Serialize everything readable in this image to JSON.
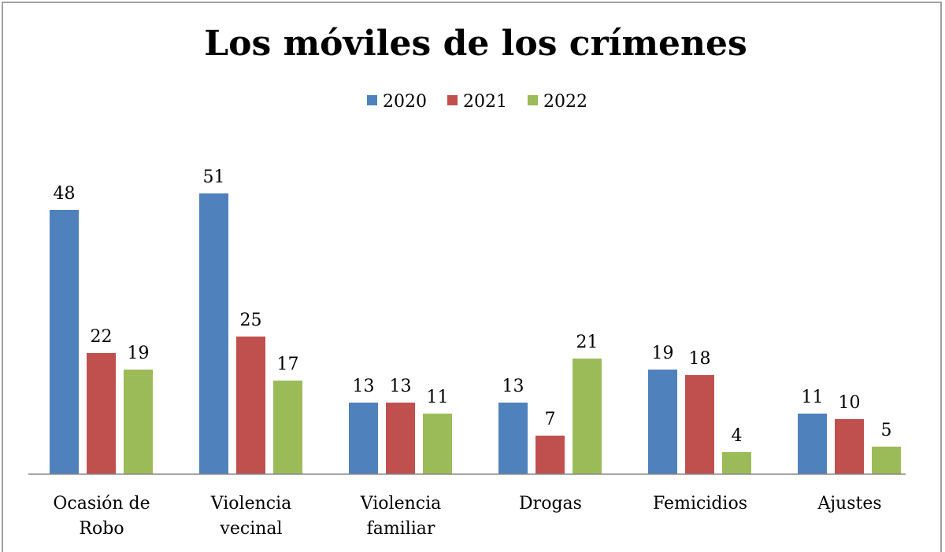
{
  "chart_data": {
    "type": "bar",
    "title": "Los móviles de los crímenes",
    "categories": [
      [
        "Ocasión de",
        "Robo"
      ],
      [
        "Violencia",
        "vecinal"
      ],
      [
        "Violencia",
        "familiar"
      ],
      [
        "Drogas"
      ],
      [
        "Femicidios"
      ],
      [
        "Ajustes"
      ]
    ],
    "series": [
      {
        "name": "2020",
        "color": "#4f81bd",
        "values": [
          48,
          51,
          13,
          13,
          19,
          11
        ]
      },
      {
        "name": "2021",
        "color": "#c0504d",
        "values": [
          22,
          25,
          13,
          7,
          18,
          10
        ]
      },
      {
        "name": "2022",
        "color": "#9bbb59",
        "values": [
          19,
          17,
          11,
          21,
          4,
          5
        ]
      }
    ],
    "data_labels": true,
    "legend": "top",
    "grid": false,
    "ylim": [
      0,
      51
    ]
  }
}
